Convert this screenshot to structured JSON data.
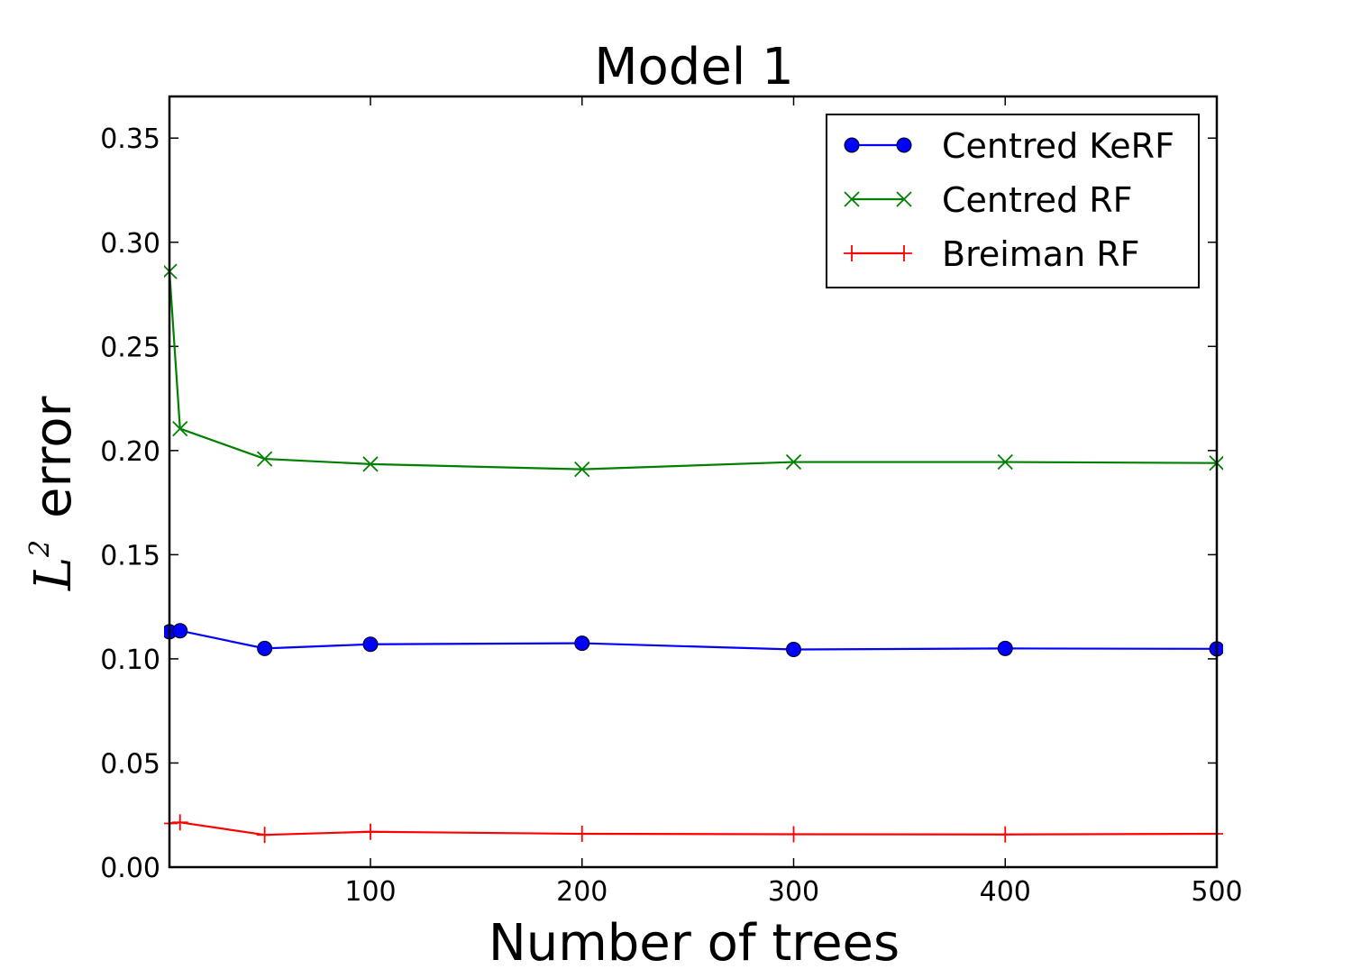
{
  "chart_data": {
    "type": "line",
    "title": "Model 1",
    "xlabel": "Number of trees",
    "ylabel": {
      "base": "L",
      "superscript": "2",
      "text": "error"
    },
    "xlim": [
      5,
      500
    ],
    "ylim": [
      0.0,
      0.37
    ],
    "xticks": [
      100,
      200,
      300,
      400,
      500
    ],
    "yticks": [
      0.0,
      0.05,
      0.1,
      0.15,
      0.2,
      0.25,
      0.3,
      0.35
    ],
    "xtick_labels": [
      "100",
      "200",
      "300",
      "400",
      "500"
    ],
    "ytick_labels": [
      "0.00",
      "0.05",
      "0.10",
      "0.15",
      "0.20",
      "0.25",
      "0.30",
      "0.35"
    ],
    "grid": false,
    "legend_position": "upper-right",
    "x": [
      5,
      10,
      50,
      100,
      200,
      300,
      400,
      500
    ],
    "series": [
      {
        "name": "Centred KeRF",
        "color": "#0000ff",
        "marker": "circle",
        "values": [
          0.113,
          0.1135,
          0.105,
          0.107,
          0.1075,
          0.1045,
          0.105,
          0.1048
        ]
      },
      {
        "name": "Centred RF",
        "color": "#008000",
        "marker": "x",
        "values": [
          0.286,
          0.2105,
          0.196,
          0.1935,
          0.191,
          0.1945,
          0.1945,
          0.194
        ]
      },
      {
        "name": "Breiman RF",
        "color": "#ff0000",
        "marker": "plus",
        "values": [
          0.021,
          0.0215,
          0.0155,
          0.017,
          0.016,
          0.0158,
          0.0157,
          0.016
        ]
      }
    ]
  }
}
